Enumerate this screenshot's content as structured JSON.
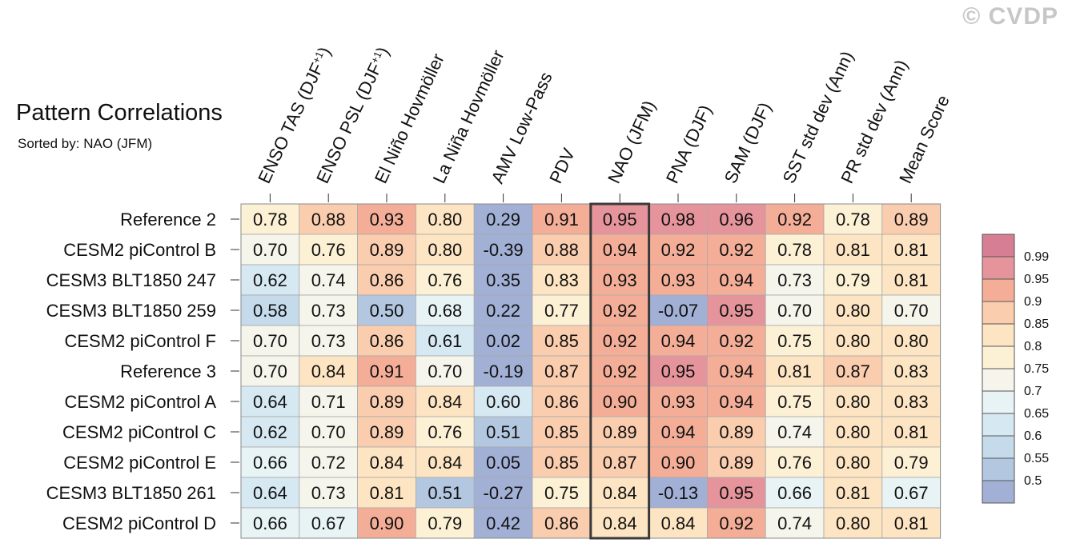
{
  "watermark": "© CVDP",
  "title": "Pattern Correlations",
  "subtitle": "Sorted by: NAO (JFM)",
  "chart_data": {
    "type": "heatmap",
    "title": "Pattern Correlations",
    "sorted_by": "NAO (JFM)",
    "highlight_column": "NAO (JFM)",
    "columns": [
      "ENSO TAS (DJF+1)",
      "ENSO PSL (DJF+1)",
      "El Niño Hovmöller",
      "La Niña Hovmöller",
      "AMV Low-Pass",
      "PDV",
      "NAO (JFM)",
      "PNA (DJF)",
      "SAM (DJF)",
      "SST std dev (Ann)",
      "PR std dev (Ann)",
      "Mean Score"
    ],
    "column_labels": [
      {
        "text": "ENSO TAS (DJF",
        "sup": "+1",
        "close": ")"
      },
      {
        "text": "ENSO PSL (DJF",
        "sup": "+1",
        "close": ")"
      },
      {
        "text": "El Niño Hovmöller"
      },
      {
        "text": "La Niña Hovmöller"
      },
      {
        "text": "AMV Low-Pass"
      },
      {
        "text": "PDV"
      },
      {
        "text": "NAO (JFM)"
      },
      {
        "text": "PNA (DJF)"
      },
      {
        "text": "SAM (DJF)"
      },
      {
        "text": "SST std dev (Ann)"
      },
      {
        "text": "PR std dev (Ann)"
      },
      {
        "text": "Mean Score"
      }
    ],
    "rows": [
      "Reference 2",
      "CESM2 piControl B",
      "CESM3 BLT1850 247",
      "CESM3 BLT1850 259",
      "CESM2 piControl F",
      "Reference 3",
      "CESM2 piControl A",
      "CESM2 piControl C",
      "CESM2 piControl E",
      "CESM3 BLT1850 261",
      "CESM2 piControl D"
    ],
    "values": [
      [
        "0.78",
        "0.88",
        "0.93",
        "0.80",
        "0.29",
        "0.91",
        "0.95",
        "0.98",
        "0.96",
        "0.92",
        "0.78",
        "0.89"
      ],
      [
        "0.70",
        "0.76",
        "0.89",
        "0.80",
        "-0.39",
        "0.88",
        "0.94",
        "0.92",
        "0.92",
        "0.78",
        "0.81",
        "0.81"
      ],
      [
        "0.62",
        "0.74",
        "0.86",
        "0.76",
        "0.35",
        "0.83",
        "0.93",
        "0.93",
        "0.94",
        "0.73",
        "0.79",
        "0.81"
      ],
      [
        "0.58",
        "0.73",
        "0.50",
        "0.68",
        "0.22",
        "0.77",
        "0.92",
        "-0.07",
        "0.95",
        "0.70",
        "0.80",
        "0.70"
      ],
      [
        "0.70",
        "0.73",
        "0.86",
        "0.61",
        "0.02",
        "0.85",
        "0.92",
        "0.94",
        "0.92",
        "0.75",
        "0.80",
        "0.80"
      ],
      [
        "0.70",
        "0.84",
        "0.91",
        "0.70",
        "-0.19",
        "0.87",
        "0.92",
        "0.95",
        "0.94",
        "0.81",
        "0.87",
        "0.83"
      ],
      [
        "0.64",
        "0.71",
        "0.89",
        "0.84",
        "0.60",
        "0.86",
        "0.90",
        "0.93",
        "0.94",
        "0.75",
        "0.80",
        "0.83"
      ],
      [
        "0.62",
        "0.70",
        "0.89",
        "0.76",
        "0.51",
        "0.85",
        "0.89",
        "0.94",
        "0.89",
        "0.74",
        "0.80",
        "0.81"
      ],
      [
        "0.66",
        "0.72",
        "0.84",
        "0.84",
        "0.05",
        "0.85",
        "0.87",
        "0.90",
        "0.89",
        "0.76",
        "0.80",
        "0.79"
      ],
      [
        "0.64",
        "0.73",
        "0.81",
        "0.51",
        "-0.27",
        "0.75",
        "0.84",
        "-0.13",
        "0.95",
        "0.66",
        "0.81",
        "0.67"
      ],
      [
        "0.66",
        "0.67",
        "0.90",
        "0.79",
        "0.42",
        "0.86",
        "0.84",
        "0.84",
        "0.92",
        "0.74",
        "0.80",
        "0.81"
      ]
    ],
    "colorbar": {
      "ticks": [
        "0.99",
        "0.95",
        "0.9",
        "0.85",
        "0.8",
        "0.75",
        "0.7",
        "0.65",
        "0.6",
        "0.55",
        "0.5"
      ],
      "levels": [
        0.5,
        0.55,
        0.6,
        0.65,
        0.7,
        0.75,
        0.8,
        0.85,
        0.9,
        0.95,
        0.99
      ],
      "colors": [
        "#a2b0d6",
        "#b3c7e0",
        "#c5dbeb",
        "#d6e8f1",
        "#e8f3f6",
        "#f5f5ec",
        "#fdf1d5",
        "#fde4c2",
        "#fbcdaf",
        "#f4ae98",
        "#e5949b",
        "#d67e93"
      ]
    }
  }
}
